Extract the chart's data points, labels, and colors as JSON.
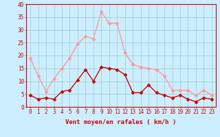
{
  "hours": [
    0,
    1,
    2,
    3,
    4,
    5,
    6,
    7,
    8,
    9,
    10,
    11,
    12,
    13,
    14,
    15,
    16,
    17,
    18,
    19,
    20,
    21,
    22,
    23
  ],
  "wind_avg": [
    4.5,
    3.0,
    3.5,
    3.0,
    6.0,
    6.5,
    10.5,
    14.5,
    10.0,
    15.5,
    15.0,
    14.5,
    12.5,
    5.5,
    5.5,
    8.5,
    5.5,
    4.5,
    3.5,
    4.5,
    3.0,
    2.0,
    3.5,
    3.0
  ],
  "wind_gust": [
    19.0,
    12.0,
    6.0,
    11.0,
    15.0,
    19.0,
    24.5,
    27.5,
    26.5,
    37.0,
    32.5,
    32.5,
    21.0,
    16.5,
    15.5,
    15.0,
    14.5,
    12.0,
    6.5,
    6.5,
    6.5,
    4.5,
    6.5,
    4.5
  ],
  "avg_color": "#cc0000",
  "gust_color": "#ff9999",
  "bg_color": "#cceeff",
  "grid_color": "#99cccc",
  "xlabel": "Vent moyen/en rafales ( km/h )",
  "ylim": [
    0,
    40
  ],
  "yticks": [
    0,
    5,
    10,
    15,
    20,
    25,
    30,
    35,
    40
  ],
  "marker": "D",
  "markersize": 2.5,
  "linewidth": 1.0,
  "tick_fontsize": 5.5,
  "xlabel_fontsize": 6.5
}
